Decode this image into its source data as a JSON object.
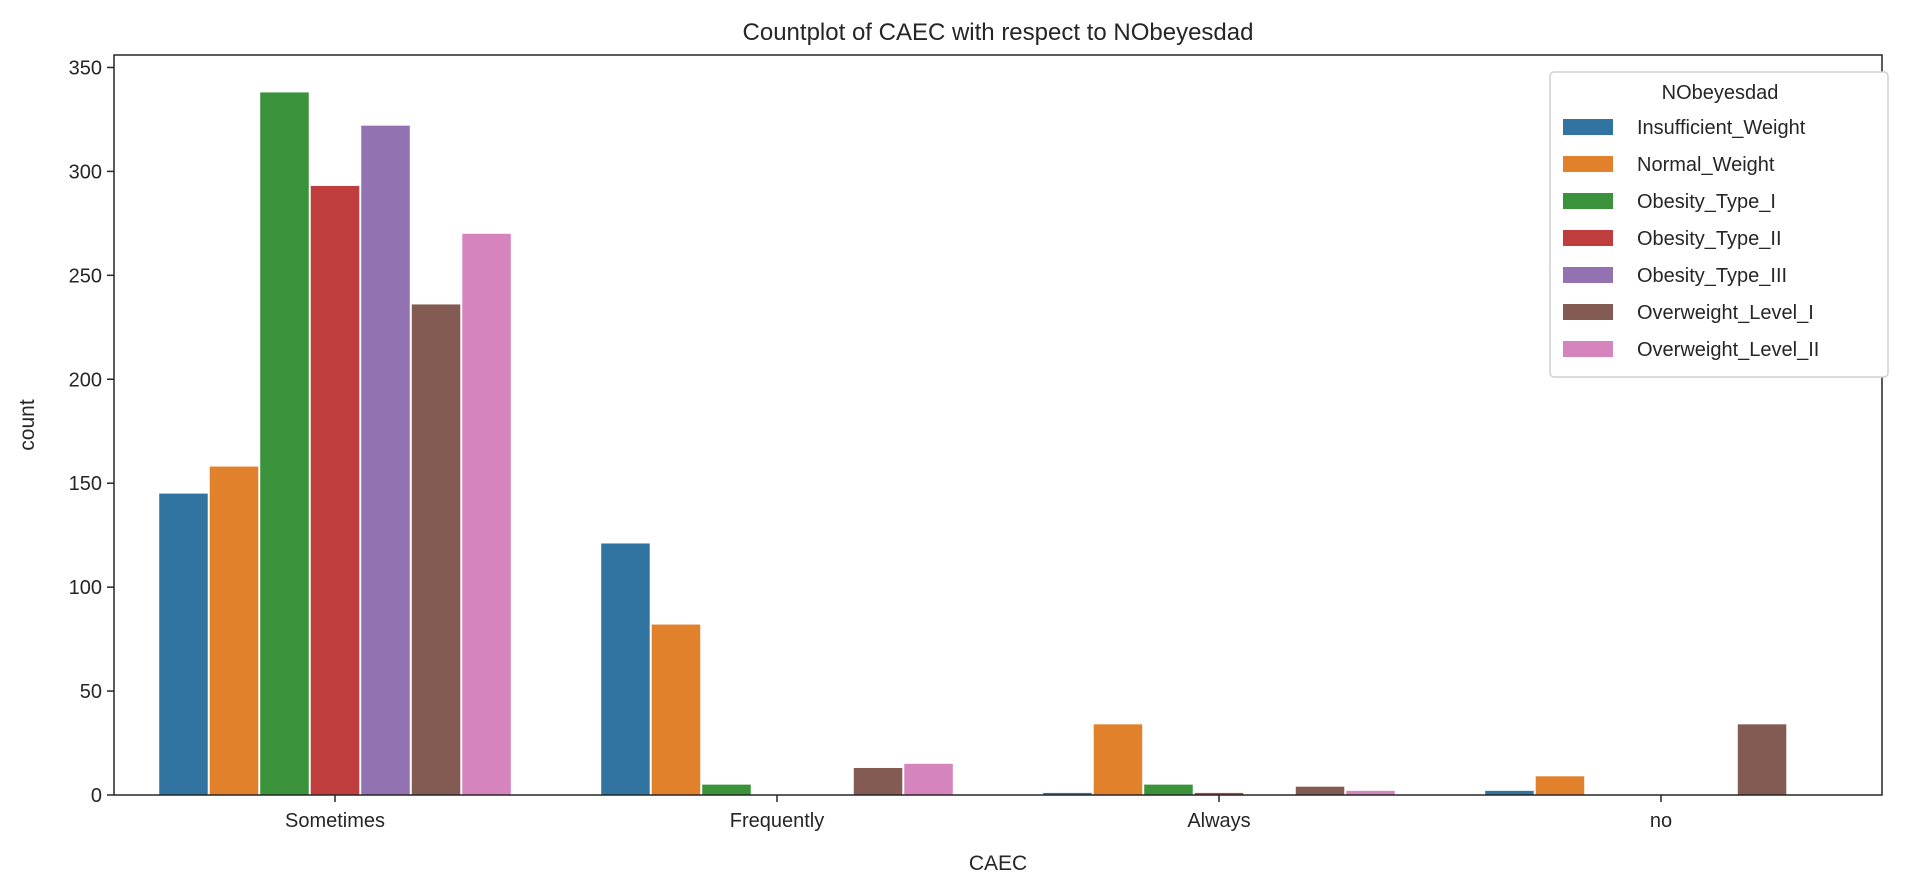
{
  "chart_data": {
    "type": "bar",
    "title": "Countplot of CAEC with respect to NObeyesdad",
    "xlabel": "CAEC",
    "ylabel": "count",
    "ylim": [
      0,
      356
    ],
    "yticks": [
      0,
      50,
      100,
      150,
      200,
      250,
      300,
      350
    ],
    "categories": [
      "Sometimes",
      "Frequently",
      "Always",
      "no"
    ],
    "grid": false,
    "legend": {
      "title": "NObeyesdad",
      "placement": "top-right"
    },
    "series": [
      {
        "name": "Insufficient_Weight",
        "color": "#3274a1",
        "values": [
          145,
          121,
          1,
          2
        ]
      },
      {
        "name": "Normal_Weight",
        "color": "#e1812c",
        "values": [
          158,
          82,
          34,
          9
        ]
      },
      {
        "name": "Obesity_Type_I",
        "color": "#3a923a",
        "values": [
          338,
          5,
          5,
          0
        ]
      },
      {
        "name": "Obesity_Type_II",
        "color": "#c03d3e",
        "values": [
          293,
          0,
          1,
          0
        ]
      },
      {
        "name": "Obesity_Type_III",
        "color": "#9372b2",
        "values": [
          322,
          0,
          0,
          0
        ]
      },
      {
        "name": "Overweight_Level_I",
        "color": "#845b53",
        "values": [
          236,
          13,
          4,
          34
        ]
      },
      {
        "name": "Overweight_Level_II",
        "color": "#d684bd",
        "values": [
          270,
          15,
          2,
          0
        ]
      }
    ]
  }
}
